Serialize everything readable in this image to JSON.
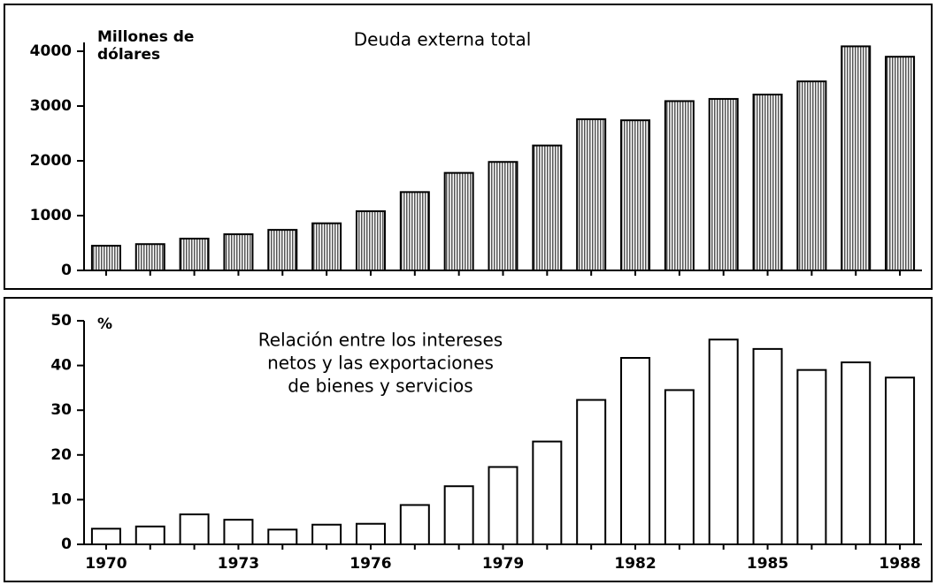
{
  "chart_data": [
    {
      "type": "bar",
      "title": "Deuda externa total",
      "y_label": [
        "Millones de",
        "dólares"
      ],
      "categories": [
        null,
        null,
        null,
        null,
        null,
        null,
        null,
        null,
        null,
        null,
        null,
        null,
        null,
        null,
        null,
        null,
        null,
        null,
        null
      ],
      "values": [
        450,
        480,
        580,
        660,
        740,
        860,
        1080,
        1430,
        1780,
        1980,
        2280,
        2760,
        2740,
        3090,
        3130,
        3210,
        3450,
        4090,
        3900
      ],
      "ylim": [
        0,
        4000
      ],
      "yticks": [
        0,
        1000,
        2000,
        3000,
        4000
      ],
      "color": "#b0b0b0",
      "fill_style": "hatched"
    },
    {
      "type": "bar",
      "title": [
        "Relación entre los intereses",
        "netos y las exportaciones",
        "de bienes y servicios"
      ],
      "y_label": "%",
      "categories": [
        "1970",
        null,
        null,
        "1973",
        null,
        null,
        "1976",
        null,
        null,
        "1979",
        null,
        null,
        "1982",
        null,
        null,
        "1985",
        null,
        null,
        "1988"
      ],
      "values": [
        3.5,
        4,
        6.7,
        5.5,
        3.3,
        4.4,
        4.6,
        8.8,
        13,
        17.3,
        23,
        32.3,
        41.7,
        34.5,
        45.8,
        43.7,
        39,
        40.7,
        37.3
      ],
      "ylim": [
        0,
        50
      ],
      "yticks": [
        0,
        10,
        20,
        30,
        40,
        50
      ],
      "color": "#ffffff",
      "fill_style": "outline"
    }
  ]
}
